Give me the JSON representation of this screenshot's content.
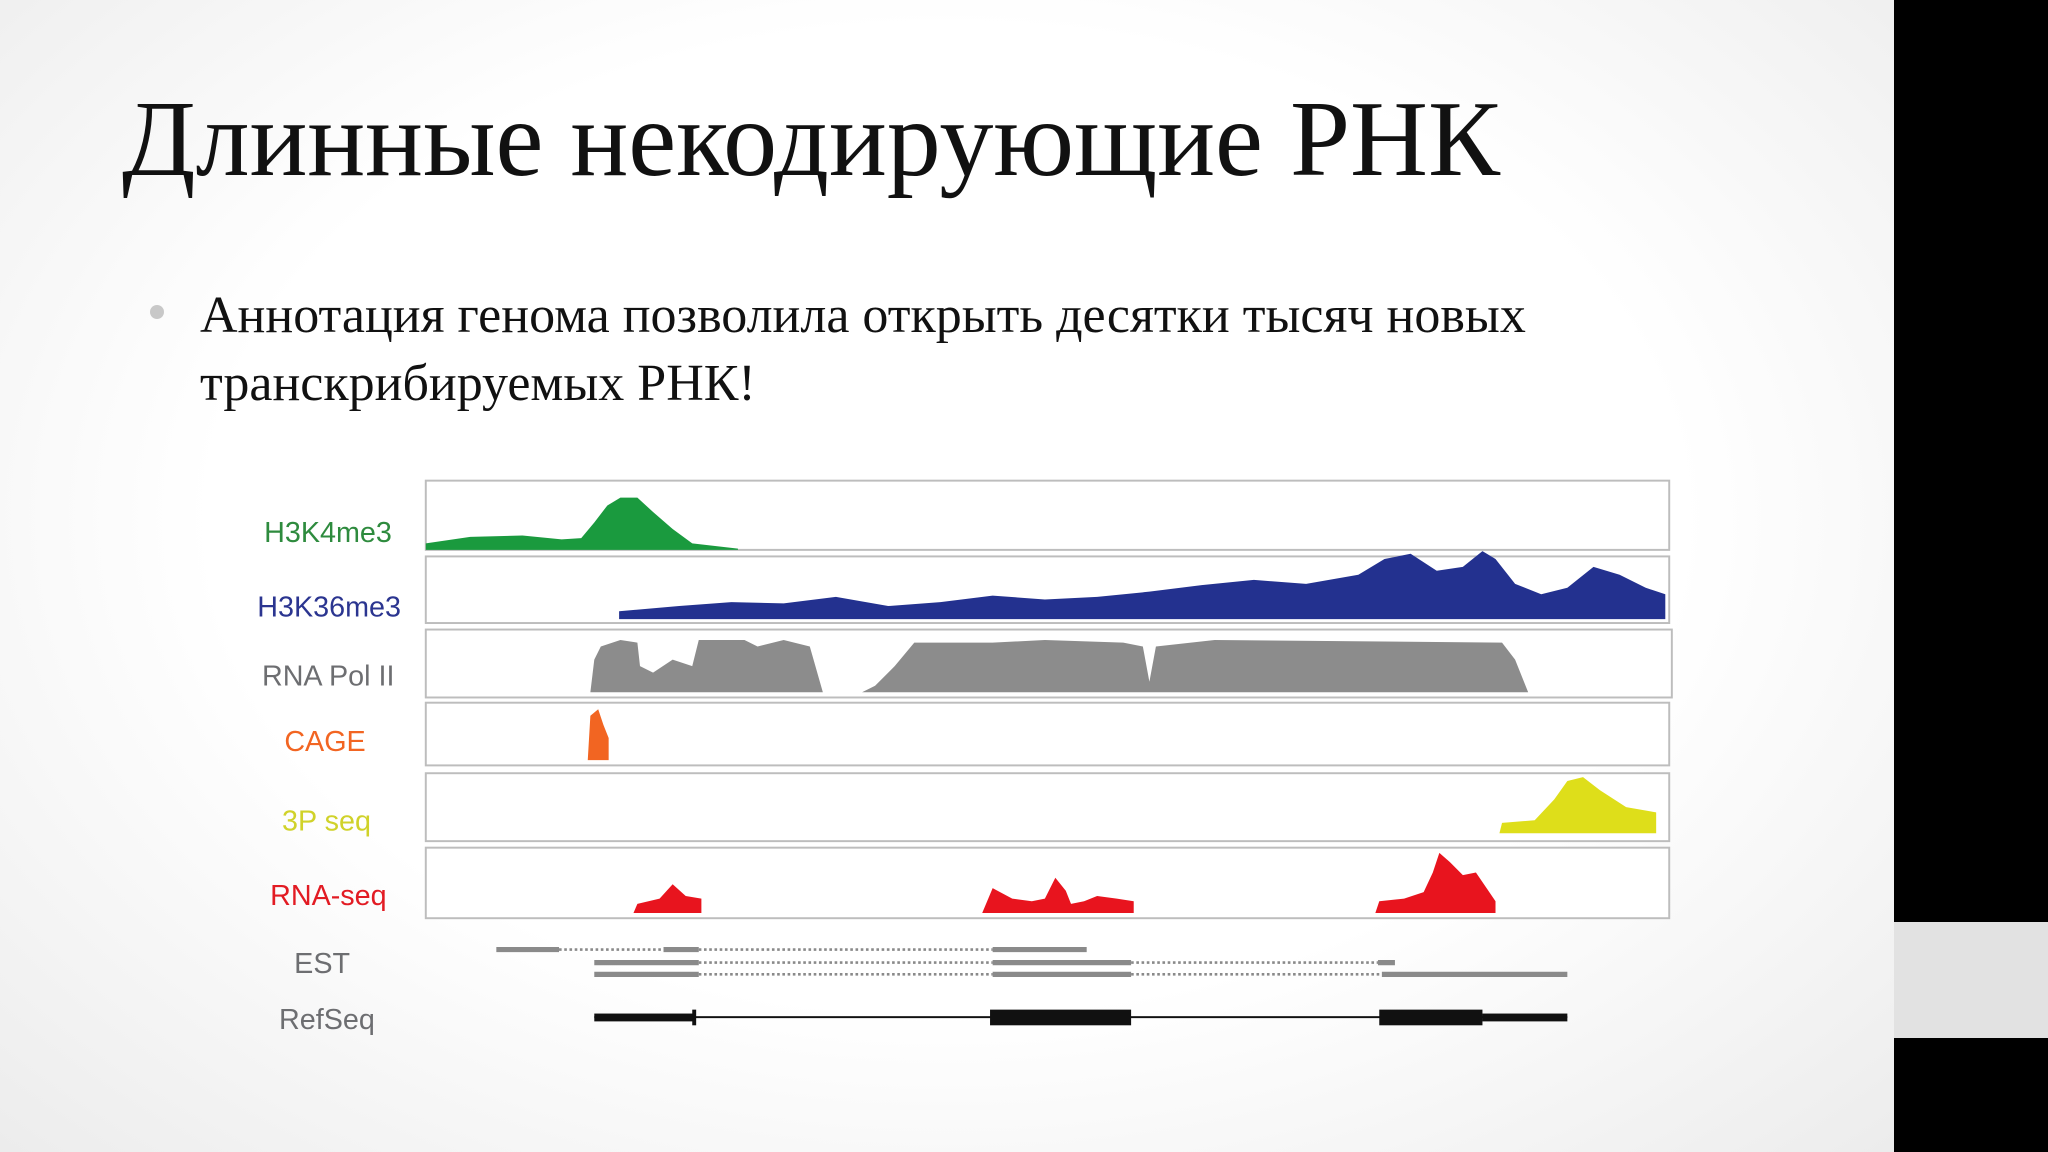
{
  "slide": {
    "title": "Длинные некодирующие РНК",
    "bullets": [
      "Аннотация генома позволила открыть десятки тысяч новых транскрибируемых РНК!"
    ]
  },
  "figure": {
    "tracks": [
      "H3K4me3",
      "H3K36me3",
      "RNA Pol II",
      "CAGE",
      "3P seq",
      "RNA-seq",
      "EST",
      "RefSeq"
    ]
  }
}
